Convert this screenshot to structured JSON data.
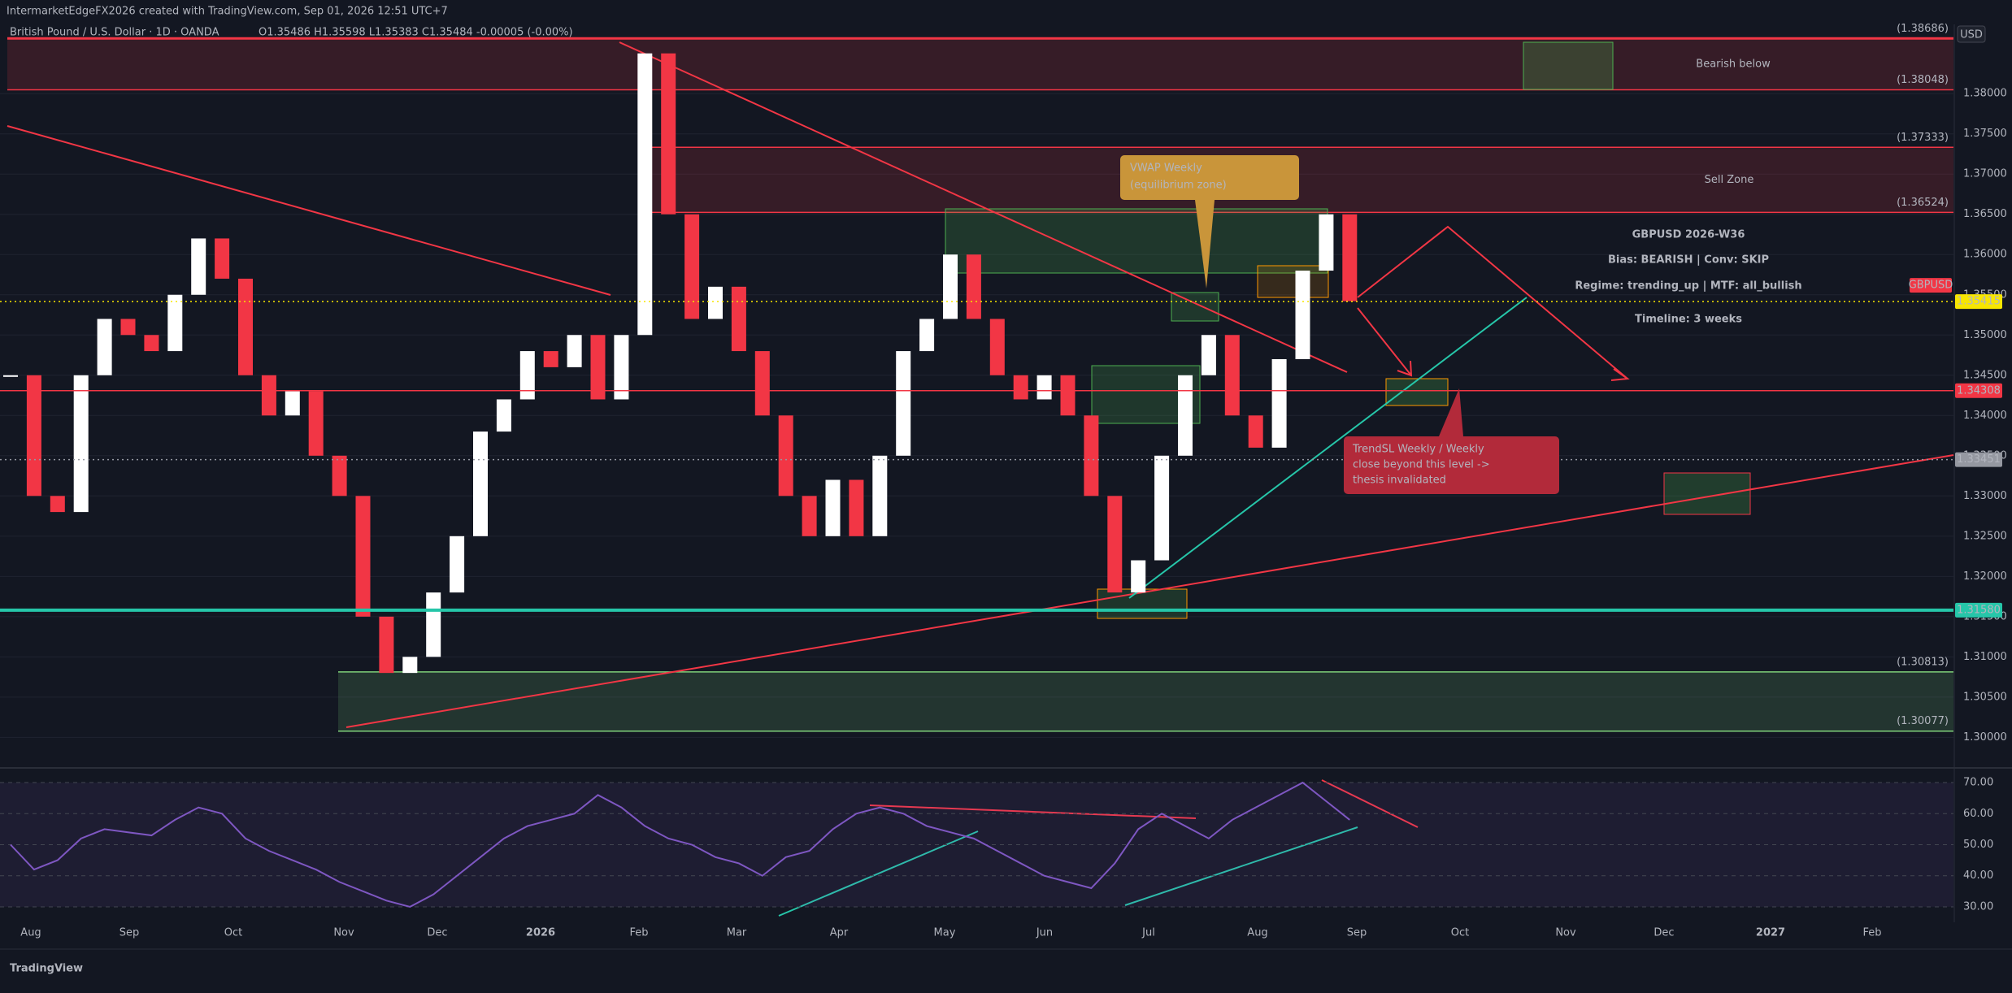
{
  "header": {
    "title": "IntermarketEdgeFX2026 created with TradingView.com, Sep 01, 2026 12:51 UTC+7"
  },
  "legend": {
    "symbol": "British Pound / U.S. Dollar · 1D · OANDA",
    "ohlc": "O1.35486 H1.35598 L1.35383 C1.35484 -0.00005 (-0.00%)"
  },
  "currency": "USD",
  "footer": {
    "brand": "TradingView"
  },
  "chart_data": [
    {
      "type": "candlestick",
      "symbol_tag": "GBPUSD",
      "values": [
        1.345,
        1.33,
        1.328,
        1.345,
        1.352,
        1.35,
        1.348,
        1.355,
        1.362,
        1.357,
        1.345,
        1.34,
        1.343,
        1.335,
        1.33,
        1.315,
        1.308,
        1.31,
        1.318,
        1.325,
        1.338,
        1.342,
        1.348,
        1.346,
        1.35,
        1.342,
        1.35,
        1.385,
        1.365,
        1.352,
        1.356,
        1.348,
        1.34,
        1.33,
        1.325,
        1.332,
        1.325,
        1.335,
        1.348,
        1.352,
        1.36,
        1.352,
        1.345,
        1.342,
        1.345,
        1.34,
        1.33,
        1.318,
        1.322,
        1.335,
        1.345,
        1.35,
        1.34,
        1.336,
        1.347,
        1.358,
        1.365,
        1.3542
      ],
      "up_color": "#ffffff",
      "down_color": "#f23645",
      "ylim": [
        1.2963,
        1.3881
      ],
      "yticks": [
        {
          "value": 1.3,
          "label": "1.30000"
        },
        {
          "value": 1.305,
          "label": "1.30500"
        },
        {
          "value": 1.31,
          "label": "1.31000"
        },
        {
          "value": 1.315,
          "label": "1.31500"
        },
        {
          "value": 1.32,
          "label": "1.32000"
        },
        {
          "value": 1.325,
          "label": "1.32500"
        },
        {
          "value": 1.33,
          "label": "1.33000"
        },
        {
          "value": 1.335,
          "label": "1.33500"
        },
        {
          "value": 1.34,
          "label": "1.34000"
        },
        {
          "value": 1.345,
          "label": "1.34500"
        },
        {
          "value": 1.35,
          "label": "1.35000"
        },
        {
          "value": 1.355,
          "label": "1.35500"
        },
        {
          "value": 1.36,
          "label": "1.36000"
        },
        {
          "value": 1.365,
          "label": "1.36500"
        },
        {
          "value": 1.37,
          "label": "1.37000"
        },
        {
          "value": 1.375,
          "label": "1.37500"
        },
        {
          "value": 1.38,
          "label": "1.38000"
        }
      ],
      "grid": true,
      "time_labels": [
        "Aug",
        "Sep",
        "Oct",
        "Nov",
        "Dec",
        "2026",
        "Feb",
        "Mar",
        "Apr",
        "May",
        "Jun",
        "Jul",
        "Aug",
        "Sep",
        "Oct",
        "Nov",
        "Dec",
        "2027",
        "Feb"
      ],
      "levels": [
        {
          "value": 1.35415,
          "color": "#f7e600",
          "text_color": "#000000",
          "style": "dotted"
        },
        {
          "value": 1.34308,
          "color": "#f23645",
          "text_color": "#ffffff",
          "style": "solid"
        },
        {
          "value": 1.33451,
          "color": "#9598a1",
          "text_color": "#000000",
          "style": "dotted"
        },
        {
          "value": 1.3158,
          "label": "1.31580",
          "color": "#26c6a9",
          "text_color": "#000000",
          "style": "thick"
        }
      ],
      "zones": [
        {
          "top": {
            "value": 1.38686,
            "label": "(1.38686)"
          },
          "bottom": {
            "value": 1.38048,
            "label": "(1.38048)"
          },
          "text": "Bearish below",
          "color": "#f23645"
        },
        {
          "top": {
            "value": 1.37333,
            "label": "(1.37333)"
          },
          "bottom": {
            "value": 1.36524,
            "label": "(1.36524)"
          },
          "text": "Sell Zone",
          "color": "#f23645"
        },
        {
          "top": {
            "value": 1.30813,
            "label": "(1.30813)"
          },
          "bottom": {
            "value": 1.30077,
            "label": "(1.30077)"
          },
          "color": "#7fd17a"
        }
      ],
      "annotations": {
        "vwap": [
          "VWAP Weekly",
          "(equilibrium zone)"
        ],
        "trendsl": [
          "TrendSL Weekly / Weekly",
          "close beyond this level ->",
          "thesis invalidated"
        ],
        "info": [
          {
            "text": "GBPUSD 2026-W36",
            "color": "#e0e3eb"
          },
          {
            "text": "Bias: BEARISH | Conv: SKIP",
            "color": "#f5a623"
          },
          {
            "text": "Regime: trending_up | MTF: all_bullish",
            "color": "#e0e3eb"
          },
          {
            "text": "Timeline: 3 weeks",
            "color": "#e0e3eb"
          }
        ]
      }
    },
    {
      "type": "line",
      "values": [
        50,
        42,
        45,
        52,
        55,
        54,
        53,
        58,
        62,
        60,
        52,
        48,
        45,
        42,
        38,
        35,
        32,
        30,
        34,
        40,
        46,
        52,
        56,
        58,
        60,
        66,
        62,
        56,
        52,
        50,
        46,
        44,
        40,
        46,
        48,
        55,
        60,
        62,
        60,
        56,
        54,
        52,
        48,
        44,
        40,
        38,
        36,
        44,
        55,
        60,
        56,
        52,
        58,
        62,
        66,
        70,
        64,
        58
      ],
      "color": "#7e57c2",
      "ylim": [
        25.8,
        74.2
      ],
      "yticks": [
        {
          "value": 30,
          "label": "30.00"
        },
        {
          "value": 40,
          "label": "40.00"
        },
        {
          "value": 50,
          "label": "50.00"
        },
        {
          "value": 60,
          "label": "60.00"
        },
        {
          "value": 70,
          "label": "70.00"
        }
      ],
      "grid": true
    }
  ]
}
